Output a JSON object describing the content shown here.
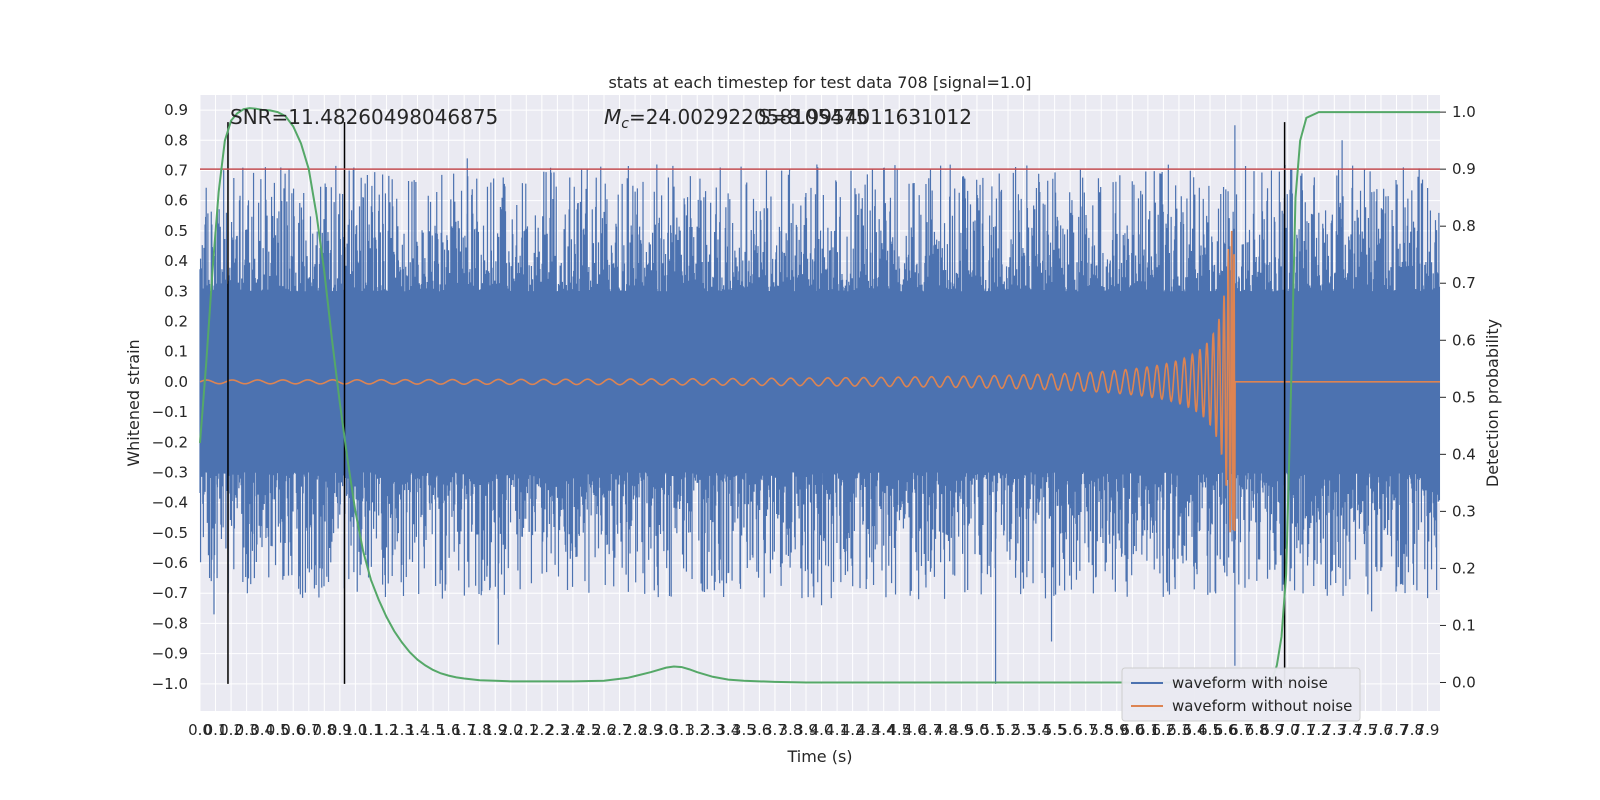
{
  "chart_data": {
    "type": "line",
    "title": "stats at each timestep for test data 708 [signal=1.0]",
    "xlabel": "Time (s)",
    "ylabel_left": "Whitened strain",
    "ylabel_right": "Detection probability",
    "xlim": [
      0.0,
      7.98
    ],
    "ylim_left": [
      -1.09,
      0.95
    ],
    "ylim_right": [
      -0.05,
      1.03
    ],
    "grid": true,
    "x_tick_labels": [
      "0.0",
      "0.1",
      "0.2",
      "0.3",
      "0.4",
      "0.5",
      "0.6",
      "0.7",
      "0.8",
      "0.9",
      "1.0",
      "1.1",
      "1.2",
      "1.3",
      "1.4",
      "1.5",
      "1.6",
      "1.7",
      "1.8",
      "1.9",
      "2.0",
      "2.1",
      "2.2",
      "2.3",
      "2.4",
      "2.5",
      "2.6",
      "2.7",
      "2.8",
      "2.9",
      "3.0",
      "3.1",
      "3.2",
      "3.3",
      "3.4",
      "3.5",
      "3.6",
      "3.7",
      "3.8",
      "3.9",
      "4.0",
      "4.1",
      "4.2",
      "4.3",
      "4.4",
      "4.5",
      "4.6",
      "4.7",
      "4.8",
      "4.9",
      "5.0",
      "5.1",
      "5.2",
      "5.3",
      "5.4",
      "5.5",
      "5.6",
      "5.7",
      "5.8",
      "5.9",
      "6.0",
      "6.1",
      "6.2",
      "6.3",
      "6.4",
      "6.5",
      "6.6",
      "6.7",
      "6.8",
      "6.9",
      "7.0",
      "7.1",
      "7.2",
      "7.3",
      "7.4",
      "7.5",
      "7.6",
      "7.7",
      "7.8",
      "7.9"
    ],
    "y_left_tick_labels": [
      "0.9",
      "0.8",
      "0.7",
      "0.6",
      "0.5",
      "0.4",
      "0.3",
      "0.2",
      "0.1",
      "0.0",
      "−0.1",
      "−0.2",
      "−0.3",
      "−0.4",
      "−0.5",
      "−0.6",
      "−0.7",
      "−0.8",
      "−0.9",
      "−1.0"
    ],
    "y_right_tick_labels": [
      "1.0",
      "0.9",
      "0.8",
      "0.7",
      "0.6",
      "0.5",
      "0.4",
      "0.3",
      "0.2",
      "0.1",
      "0.0"
    ],
    "annotations": {
      "snr": "SNR=11.48260498046875",
      "mc_prefix": "M",
      "mc_sub": "c",
      "mc_value": "=24.002922058105475",
      "overlap_text": "S=8.9954011631012"
    },
    "threshold_line": {
      "axis": "right",
      "y": 0.9,
      "color": "#c44e52"
    },
    "vertical_lines_x": [
      0.18,
      0.93,
      6.98
    ],
    "vertical_lines_y_range": [
      -1.0,
      0.86
    ],
    "noisy_waveform": {
      "name": "waveform with noise",
      "color": "#4c72b0",
      "core_amplitude": 0.3,
      "peak_samples": [
        {
          "x": 0.09,
          "y": -0.77
        },
        {
          "x": 0.1,
          "y": 0.49
        },
        {
          "x": 0.11,
          "y": -0.65
        },
        {
          "x": 0.17,
          "y": 0.56
        },
        {
          "x": 0.35,
          "y": -0.65
        },
        {
          "x": 0.52,
          "y": 0.71
        },
        {
          "x": 0.96,
          "y": 0.7
        },
        {
          "x": 1.72,
          "y": 0.74
        },
        {
          "x": 1.92,
          "y": -0.87
        },
        {
          "x": 2.94,
          "y": 0.72
        },
        {
          "x": 3.31,
          "y": -0.69
        },
        {
          "x": 3.97,
          "y": 0.72
        },
        {
          "x": 4.0,
          "y": -0.74
        },
        {
          "x": 5.12,
          "y": -1.0
        },
        {
          "x": 5.48,
          "y": -0.86
        },
        {
          "x": 6.66,
          "y": 0.85
        },
        {
          "x": 6.66,
          "y": -0.94
        },
        {
          "x": 7.35,
          "y": 0.8
        },
        {
          "x": 7.13,
          "y": -0.58
        },
        {
          "x": 7.54,
          "y": -0.76
        }
      ]
    },
    "clean_waveform": {
      "name": "waveform without noise",
      "color": "#dd8452",
      "amplitude_start": 0.006,
      "amplitude_peak": 0.5,
      "merger_time": 6.66
    },
    "detection_probability": {
      "name": "detection probability",
      "color": "#55a868",
      "x": [
        0.0,
        0.04,
        0.08,
        0.12,
        0.16,
        0.2,
        0.24,
        0.28,
        0.32,
        0.36,
        0.4,
        0.45,
        0.5,
        0.55,
        0.6,
        0.65,
        0.7,
        0.75,
        0.8,
        0.85,
        0.9,
        0.95,
        1.0,
        1.05,
        1.1,
        1.15,
        1.2,
        1.25,
        1.3,
        1.35,
        1.4,
        1.45,
        1.5,
        1.55,
        1.6,
        1.65,
        1.7,
        1.8,
        1.9,
        2.0,
        2.1,
        2.2,
        2.4,
        2.6,
        2.75,
        2.9,
        3.0,
        3.05,
        3.1,
        3.15,
        3.2,
        3.3,
        3.4,
        3.5,
        3.6,
        3.7,
        3.9,
        4.2,
        5.0,
        6.0,
        6.7,
        6.8,
        6.9,
        6.93,
        6.96,
        6.99,
        7.02,
        7.05,
        7.08,
        7.12,
        7.2,
        7.5,
        7.98
      ],
      "y": [
        0.42,
        0.56,
        0.72,
        0.86,
        0.95,
        0.985,
        0.998,
        1.005,
        1.007,
        1.006,
        1.004,
        1.003,
        1.0,
        0.993,
        0.975,
        0.945,
        0.9,
        0.82,
        0.72,
        0.6,
        0.49,
        0.39,
        0.3,
        0.23,
        0.18,
        0.145,
        0.115,
        0.09,
        0.07,
        0.053,
        0.04,
        0.03,
        0.022,
        0.016,
        0.012,
        0.009,
        0.007,
        0.004,
        0.003,
        0.002,
        0.002,
        0.002,
        0.002,
        0.003,
        0.008,
        0.018,
        0.026,
        0.028,
        0.027,
        0.023,
        0.018,
        0.01,
        0.005,
        0.003,
        0.002,
        0.001,
        0.0,
        0.0,
        0.0,
        0.0,
        0.0,
        0.002,
        0.005,
        0.03,
        0.08,
        0.19,
        0.5,
        0.85,
        0.95,
        0.99,
        1.0,
        1.0,
        1.0
      ]
    },
    "legend": {
      "placement": "lower-right",
      "entries": [
        "waveform with noise",
        "waveform without noise"
      ]
    }
  },
  "colors": {
    "plot_background": "#eaeaf2",
    "grid": "#ffffff",
    "noise": "#4c72b0",
    "clean": "#dd8452",
    "probability": "#55a868",
    "threshold": "#c44e52",
    "vertical_lines": "#000000"
  }
}
